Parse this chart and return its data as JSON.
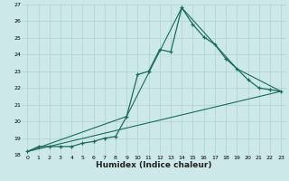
{
  "title": "",
  "xlabel": "Humidex (Indice chaleur)",
  "background_color": "#cce8e8",
  "grid_color": "#b0d0d0",
  "line_color": "#1a6b5a",
  "xlim": [
    -0.5,
    23.5
  ],
  "ylim": [
    18,
    27
  ],
  "xticks": [
    0,
    1,
    2,
    3,
    4,
    5,
    6,
    7,
    8,
    9,
    10,
    11,
    12,
    13,
    14,
    15,
    16,
    17,
    18,
    19,
    20,
    21,
    22,
    23
  ],
  "yticks": [
    18,
    19,
    20,
    21,
    22,
    23,
    24,
    25,
    26,
    27
  ],
  "main_x": [
    0,
    1,
    2,
    3,
    4,
    5,
    6,
    7,
    8,
    9,
    10,
    11,
    12,
    13,
    14,
    15,
    16,
    17,
    18,
    19,
    20,
    21,
    22,
    23
  ],
  "main_y": [
    18.2,
    18.5,
    18.5,
    18.5,
    18.5,
    18.7,
    18.8,
    19.0,
    19.1,
    20.3,
    22.8,
    23.0,
    24.3,
    24.15,
    26.8,
    25.8,
    25.05,
    24.6,
    23.75,
    23.15,
    22.5,
    22.0,
    21.9,
    21.8
  ],
  "line1_x": [
    0,
    23
  ],
  "line1_y": [
    18.2,
    21.8
  ],
  "line2_x": [
    0,
    9,
    14,
    19,
    23
  ],
  "line2_y": [
    18.2,
    20.3,
    26.8,
    23.15,
    21.8
  ]
}
